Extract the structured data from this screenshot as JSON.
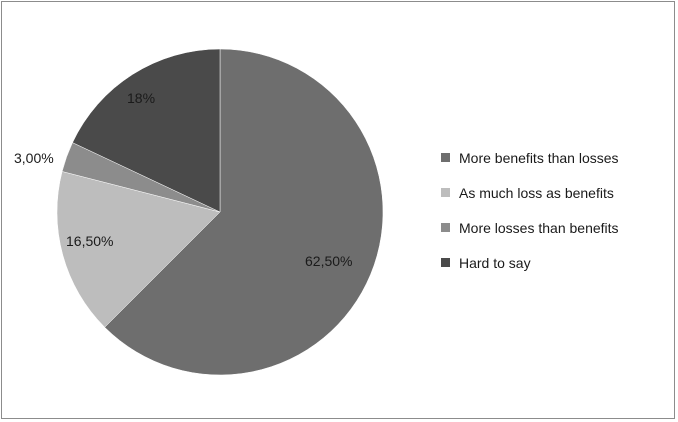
{
  "chart_data": {
    "type": "pie",
    "title": "",
    "slices": [
      {
        "label": "More benefits than losses",
        "value": 62.5,
        "data_label": "62,50%",
        "color": "#6e6e6e"
      },
      {
        "label": "As much loss as benefits",
        "value": 16.5,
        "data_label": "16,50%",
        "color": "#bdbdbd"
      },
      {
        "label": "More losses than benefits",
        "value": 3.0,
        "data_label": "3,00%",
        "color": "#8c8c8c"
      },
      {
        "label": "Hard to say",
        "value": 18,
        "data_label": "18%",
        "color": "#4a4a4a"
      }
    ],
    "start_angle_deg": 0,
    "direction": "clockwise",
    "legend_position": "right"
  }
}
